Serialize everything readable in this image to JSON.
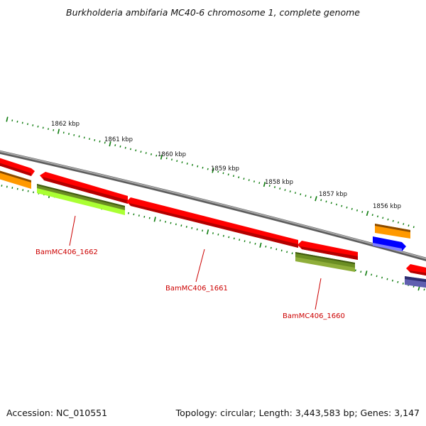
{
  "title": "Burkholderia ambifaria MC40-6 chromosome 1, complete genome",
  "footer": {
    "accession": "Accession: NC_010551",
    "summary": "Topology: circular; Length: 3,443,583 bp; Genes: 3,147"
  },
  "scale_labels": [
    "1862 kbp",
    "1861 kbp",
    "1860 kbp",
    "1859 kbp",
    "1858 kbp",
    "1857 kbp",
    "1856 kbp"
  ],
  "gene_labels": [
    "BamMC406_1662",
    "BamMC406_1661",
    "BamMC406_1660"
  ],
  "colors": {
    "backbone": "#888888",
    "tick": "#0a7a0a",
    "cds": "#ff0000",
    "cds_dark": "#aa0000",
    "orange": "#ff9900",
    "olive": "#6b8e23",
    "lime": "#aaff33",
    "blue": "#0000ff",
    "slate": "#4b4b99",
    "label_red": "#cc0000"
  }
}
